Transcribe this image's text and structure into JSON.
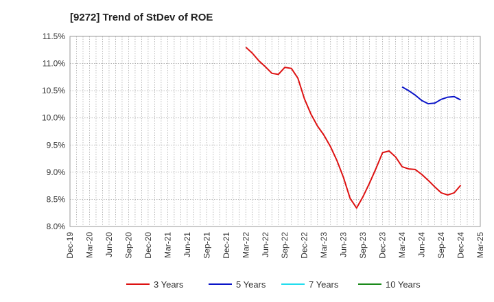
{
  "chart_data": {
    "type": "line",
    "title": "[9272]  Trend of StDev of ROE",
    "xlabel": "",
    "ylabel": "",
    "x_ticks": [
      "Dec-19",
      "Mar-20",
      "Jun-20",
      "Sep-20",
      "Dec-20",
      "Mar-21",
      "Jun-21",
      "Sep-21",
      "Dec-21",
      "Mar-22",
      "Jun-22",
      "Sep-22",
      "Dec-22",
      "Mar-23",
      "Jun-23",
      "Sep-23",
      "Dec-23",
      "Mar-24",
      "Jun-24",
      "Sep-24",
      "Dec-24",
      "Mar-25"
    ],
    "y_ticks": [
      "8.0%",
      "8.5%",
      "9.0%",
      "9.5%",
      "10.0%",
      "10.5%",
      "11.0%",
      "11.5%"
    ],
    "ylim": [
      8.0,
      11.5
    ],
    "grid": true,
    "legend_position": "bottom",
    "series": [
      {
        "name": "3 Years",
        "color": "#dd1111",
        "x": [
          "Mar-22",
          "Apr-22",
          "May-22",
          "Jun-22",
          "Jul-22",
          "Aug-22",
          "Sep-22",
          "Oct-22",
          "Nov-22",
          "Dec-22",
          "Jan-23",
          "Feb-23",
          "Mar-23",
          "Apr-23",
          "May-23",
          "Jun-23",
          "Jul-23",
          "Aug-23",
          "Sep-23",
          "Oct-23",
          "Nov-23",
          "Dec-23",
          "Jan-24",
          "Feb-24",
          "Mar-24",
          "Apr-24",
          "May-24",
          "Jun-24",
          "Jul-24",
          "Aug-24",
          "Sep-24",
          "Oct-24",
          "Nov-24",
          "Dec-24"
        ],
        "values": [
          11.3,
          11.19,
          11.05,
          10.94,
          10.82,
          10.8,
          10.93,
          10.91,
          10.73,
          10.35,
          10.07,
          9.85,
          9.68,
          9.47,
          9.21,
          8.9,
          8.52,
          8.34,
          8.55,
          8.8,
          9.07,
          9.36,
          9.39,
          9.28,
          9.1,
          9.06,
          9.05,
          8.96,
          8.85,
          8.73,
          8.62,
          8.58,
          8.62,
          8.76
        ]
      },
      {
        "name": "5 Years",
        "color": "#0a14c8",
        "x": [
          "Mar-24",
          "Apr-24",
          "May-24",
          "Jun-24",
          "Jul-24",
          "Aug-24",
          "Sep-24",
          "Oct-24",
          "Nov-24",
          "Dec-24"
        ],
        "values": [
          10.57,
          10.5,
          10.42,
          10.32,
          10.26,
          10.27,
          10.34,
          10.38,
          10.39,
          10.33
        ]
      },
      {
        "name": "7 Years",
        "color": "#22ddee",
        "x": [],
        "values": []
      },
      {
        "name": "10 Years",
        "color": "#1a8a1a",
        "x": [],
        "values": []
      }
    ]
  }
}
